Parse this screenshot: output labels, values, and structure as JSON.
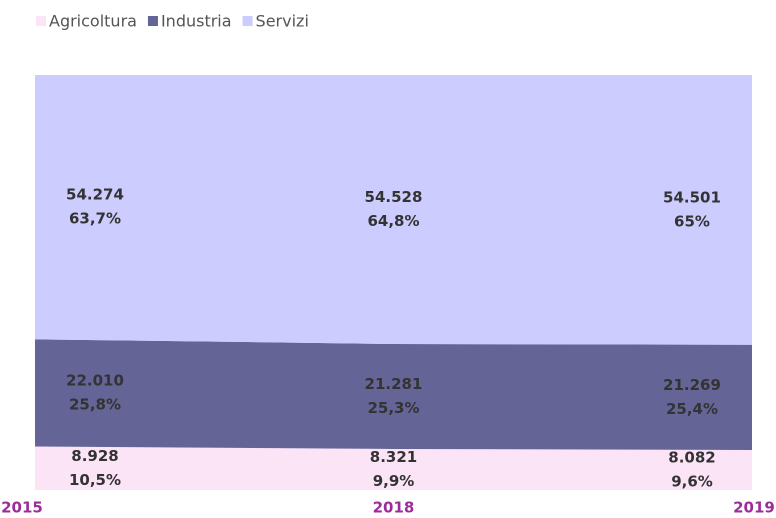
{
  "chart_data": {
    "type": "area",
    "categories": [
      "2015",
      "2018",
      "2019"
    ],
    "series": [
      {
        "name": "Agricoltura",
        "color": "#fce4f7",
        "values": [
          8928,
          8321,
          8082
        ],
        "value_labels": [
          "8.928",
          "8.321",
          "8.082"
        ],
        "shares": [
          10.5,
          9.9,
          9.6
        ],
        "share_labels": [
          "10,5%",
          "9,9%",
          "9,6%"
        ]
      },
      {
        "name": "Industria",
        "color": "#646496",
        "values": [
          22010,
          21281,
          21269
        ],
        "value_labels": [
          "22.010",
          "21.281",
          "21.269"
        ],
        "shares": [
          25.8,
          25.3,
          25.4
        ],
        "share_labels": [
          "25,8%",
          "25,3%",
          "25,4%"
        ]
      },
      {
        "name": "Servizi",
        "color": "#ccccff",
        "values": [
          54274,
          54528,
          54501
        ],
        "value_labels": [
          "54.274",
          "54.528",
          "54.501"
        ],
        "shares": [
          63.7,
          64.8,
          65
        ],
        "share_labels": [
          "63,7%",
          "64,8%",
          "65%"
        ]
      }
    ],
    "stacked_percent": true,
    "legend": "top-left"
  }
}
